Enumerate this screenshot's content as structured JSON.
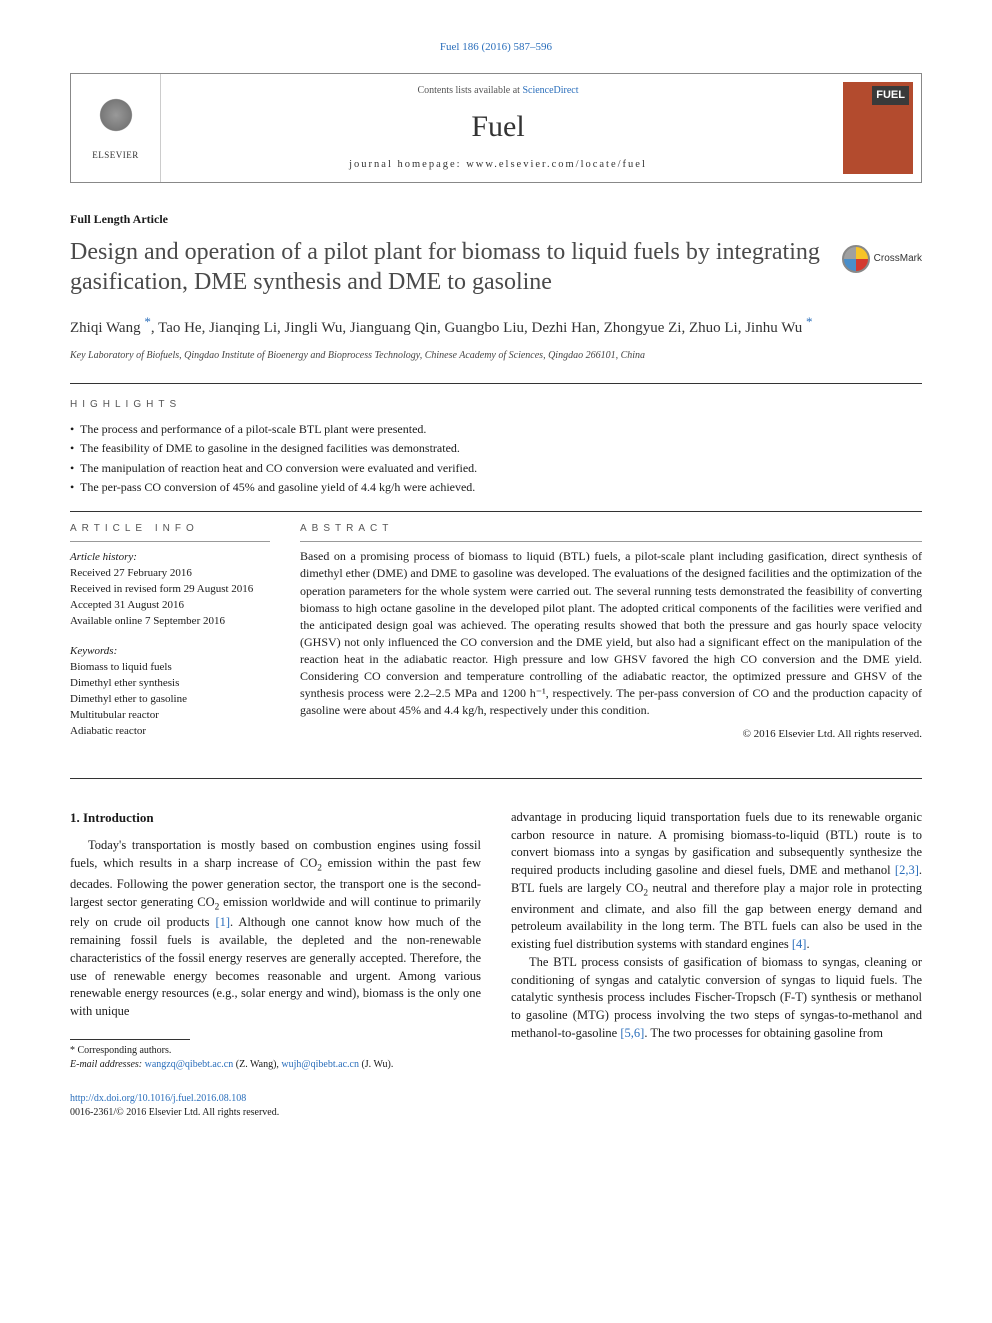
{
  "citation": "Fuel 186 (2016) 587–596",
  "header": {
    "publisher": "ELSEVIER",
    "contents_prefix": "Contents lists available at ",
    "contents_link": "ScienceDirect",
    "journal": "Fuel",
    "homepage_prefix": "journal homepage: ",
    "homepage_url": "www.elsevier.com/locate/fuel",
    "cover_label": "FUEL"
  },
  "article_type": "Full Length Article",
  "title": "Design and operation of a pilot plant for biomass to liquid fuels by integrating gasification, DME synthesis and DME to gasoline",
  "crossmark": "CrossMark",
  "authors_html": "Zhiqi Wang <span class='star'>*</span>, Tao He, Jianqing Li, Jingli Wu, Jianguang Qin, Guangbo Liu, Dezhi Han, Zhongyue Zi, Zhuo Li, Jinhu Wu <span class='star'>*</span>",
  "affiliation": "Key Laboratory of Biofuels, Qingdao Institute of Bioenergy and Bioprocess Technology, Chinese Academy of Sciences, Qingdao 266101, China",
  "highlights_label": "highlights",
  "highlights": [
    "The process and performance of a pilot-scale BTL plant were presented.",
    "The feasibility of DME to gasoline in the designed facilities was demonstrated.",
    "The manipulation of reaction heat and CO conversion were evaluated and verified.",
    "The per-pass CO conversion of 45% and gasoline yield of 4.4 kg/h were achieved."
  ],
  "info_label": "article info",
  "abstract_label": "abstract",
  "history_head": "Article history:",
  "history": [
    "Received 27 February 2016",
    "Received in revised form 29 August 2016",
    "Accepted 31 August 2016",
    "Available online 7 September 2016"
  ],
  "keywords_head": "Keywords:",
  "keywords": [
    "Biomass to liquid fuels",
    "Dimethyl ether synthesis",
    "Dimethyl ether to gasoline",
    "Multitubular reactor",
    "Adiabatic reactor"
  ],
  "abstract": "Based on a promising process of biomass to liquid (BTL) fuels, a pilot-scale plant including gasification, direct synthesis of dimethyl ether (DME) and DME to gasoline was developed. The evaluations of the designed facilities and the optimization of the operation parameters for the whole system were carried out. The several running tests demonstrated the feasibility of converting biomass to high octane gasoline in the developed pilot plant. The adopted critical components of the facilities were verified and the anticipated design goal was achieved. The operating results showed that both the pressure and gas hourly space velocity (GHSV) not only influenced the CO conversion and the DME yield, but also had a significant effect on the manipulation of the reaction heat in the adiabatic reactor. High pressure and low GHSV favored the high CO conversion and the DME yield. Considering CO conversion and temperature controlling of the adiabatic reactor, the optimized pressure and GHSV of the synthesis process were 2.2–2.5 MPa and 1200 h⁻¹, respectively. The per-pass conversion of CO and the production capacity of gasoline were about 45% and 4.4 kg/h, respectively under this condition.",
  "copyright": "© 2016 Elsevier Ltd. All rights reserved.",
  "intro_heading": "1. Introduction",
  "intro_col1": "Today's transportation is mostly based on combustion engines using fossil fuels, which results in a sharp increase of CO₂ emission within the past few decades. Following the power generation sector, the transport one is the second-largest sector generating CO₂ emission worldwide and will continue to primarily rely on crude oil products [1]. Although one cannot know how much of the remaining fossil fuels is available, the depleted and the non-renewable characteristics of the fossil energy reserves are generally accepted. Therefore, the use of renewable energy becomes reasonable and urgent. Among various renewable energy resources (e.g., solar energy and wind), biomass is the only one with unique",
  "intro_col2_p1": "advantage in producing liquid transportation fuels due to its renewable organic carbon resource in nature. A promising biomass-to-liquid (BTL) route is to convert biomass into a syngas by gasification and subsequently synthesize the required products including gasoline and diesel fuels, DME and methanol [2,3]. BTL fuels are largely CO₂ neutral and therefore play a major role in protecting environment and climate, and also fill the gap between energy demand and petroleum availability in the long term. The BTL fuels can also be used in the existing fuel distribution systems with standard engines [4].",
  "intro_col2_p2": "The BTL process consists of gasification of biomass to syngas, cleaning or conditioning of syngas and catalytic conversion of syngas to liquid fuels. The catalytic synthesis process includes Fischer-Tropsch (F-T) synthesis or methanol to gasoline (MTG) process involving the two steps of syngas-to-methanol and methanol-to-gasoline [5,6]. The two processes for obtaining gasoline from",
  "footnote": {
    "corr": "* Corresponding authors.",
    "email_label": "E-mail addresses: ",
    "email1": "wangzq@qibebt.ac.cn",
    "name1": " (Z. Wang), ",
    "email2": "wujh@qibebt.ac.cn",
    "name2": " (J. Wu)."
  },
  "doi": {
    "url": "http://dx.doi.org/10.1016/j.fuel.2016.08.108",
    "issn_line": "0016-2361/© 2016 Elsevier Ltd. All rights reserved."
  },
  "refs": {
    "r1": "[1]",
    "r23": "[2,3]",
    "r4": "[4]",
    "r56": "[5,6]"
  },
  "colors": {
    "link": "#2a6ebb",
    "text": "#1a1a1a",
    "cover_bg": "#b34b2e",
    "rule": "#333333"
  }
}
